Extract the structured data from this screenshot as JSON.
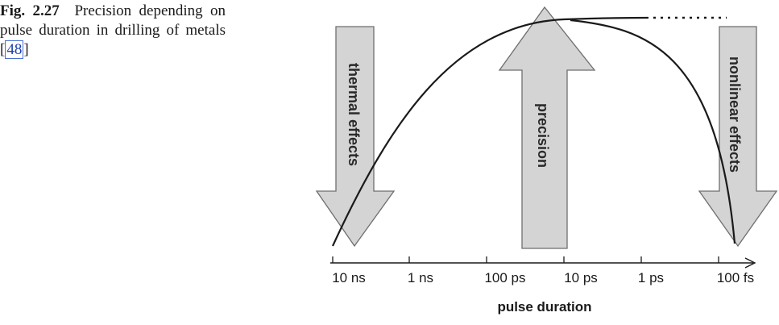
{
  "caption": {
    "label": "Fig. 2.27",
    "text_before_ref": "Precision depending on pulse duration in drilling of metals [",
    "ref": "48",
    "text_after_ref": "]"
  },
  "diagram": {
    "arrows": [
      {
        "name": "thermal-effects",
        "label": "thermal effects",
        "direction": "down"
      },
      {
        "name": "precision",
        "label": "precision",
        "direction": "up"
      },
      {
        "name": "nonlinear-effects",
        "label": "nonlinear effects",
        "direction": "down"
      }
    ],
    "axis": {
      "title": "pulse duration",
      "ticks": [
        "10 ns",
        "1 ns",
        "100 ps",
        "10 ps",
        "1 ps",
        "100 fs"
      ]
    },
    "colors": {
      "arrow_fill": "#d4d4d4",
      "arrow_stroke": "#6e6e6e",
      "curve": "#1a1a1a"
    }
  }
}
